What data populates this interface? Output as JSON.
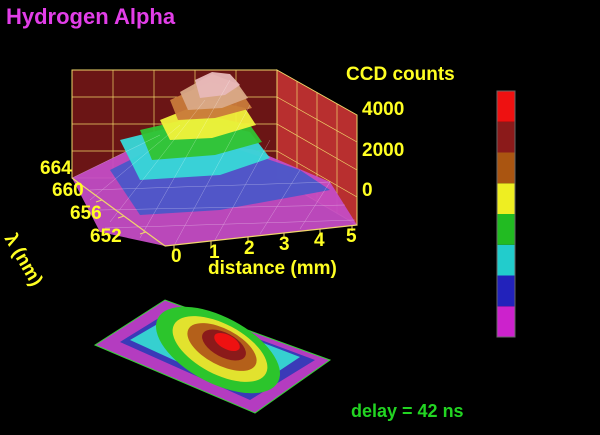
{
  "title": "Hydrogen Alpha",
  "delay_text": "delay = 42 ns",
  "chart_data": [
    {
      "type": "surface",
      "zlabel": "CCD counts",
      "xlabel": "distance (mm)",
      "ylabel": "λ (nm)",
      "x_ticks": [
        "0",
        "1",
        "2",
        "3",
        "4",
        "5"
      ],
      "y_ticks": [
        "652",
        "656",
        "660",
        "664"
      ],
      "z_ticks": [
        "0",
        "2000",
        "4000"
      ],
      "xlim": [
        0,
        5
      ],
      "ylim": [
        650,
        666
      ],
      "zlim": [
        0,
        5000
      ],
      "peak": {
        "x": 1.6,
        "y": 657,
        "z": 4800
      },
      "grid": true
    },
    {
      "type": "heatmap",
      "title": "",
      "peak": {
        "x": 2.5,
        "y": 657
      }
    }
  ],
  "colorbar": {
    "colors": [
      "#cc22cc",
      "#2222bb",
      "#22cccc",
      "#22bb22",
      "#eeee22",
      "#aa5511",
      "#8b1a1a",
      "#ee1111"
    ]
  },
  "colors": {
    "title": "#e23ee8",
    "axis_text": "#ffff22",
    "delay_text": "#22d422",
    "box_wall": "#8b1e1e",
    "box_grid": "#f0d66a"
  }
}
